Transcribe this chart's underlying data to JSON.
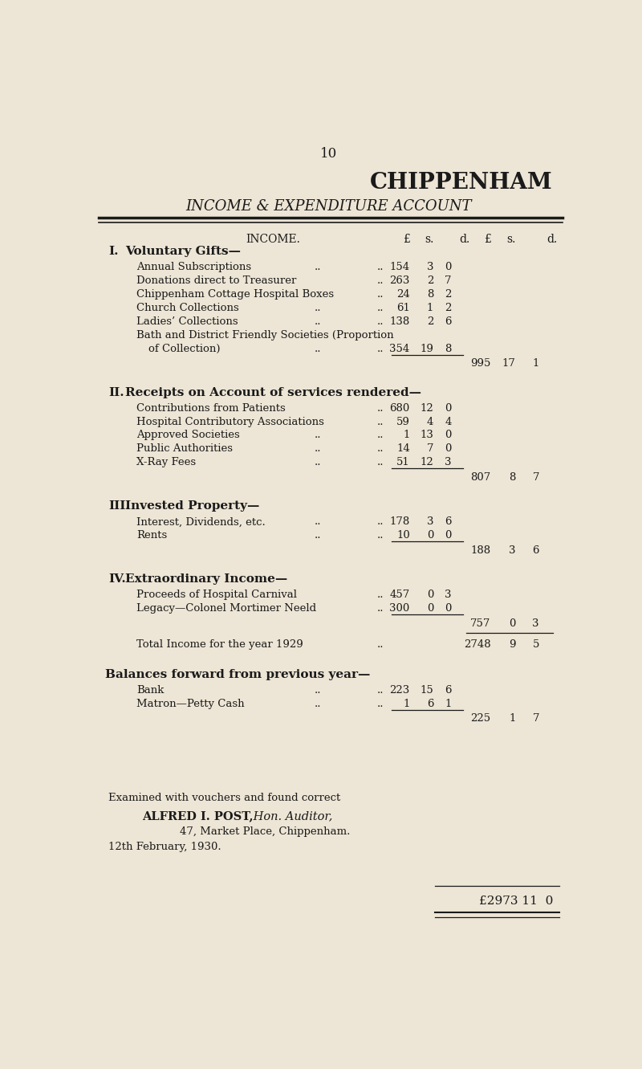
{
  "bg_color": "#ede5d5",
  "text_color": "#1a1a1a",
  "page_number": "10",
  "title1": "CHIPPENHAM",
  "title2": "INCOME & EXPENDITURE ACCOUNT",
  "sections": [
    {
      "roman": "I.",
      "heading": "Voluntary Gifts—",
      "items": [
        {
          "label": "Annual Subscriptions",
          "dots1": true,
          "dots2": true,
          "c1": "154",
          "c2": "3",
          "c3": "0"
        },
        {
          "label": "Donations direct to Treasurer",
          "dots1": false,
          "dots2": true,
          "c1": "263",
          "c2": "2",
          "c3": "7"
        },
        {
          "label": "Chippenham Cottage Hospital Boxes",
          "dots1": false,
          "dots2": true,
          "c1": "24",
          "c2": "8",
          "c3": "2"
        },
        {
          "label": "Church Collections",
          "dots1": true,
          "dots2": true,
          "c1": "61",
          "c2": "1",
          "c3": "2"
        },
        {
          "label": "Ladies’ Collections",
          "dots1": true,
          "dots2": true,
          "c1": "138",
          "c2": "2",
          "c3": "6"
        },
        {
          "label": "Bath and District Friendly Societies (Proportion",
          "dots1": false,
          "dots2": false,
          "c1": "",
          "c2": "",
          "c3": ""
        },
        {
          "label": "of Collection)",
          "dots1": true,
          "dots2": true,
          "c1": "354",
          "c2": "19",
          "c3": "8"
        }
      ],
      "subtotal": {
        "c1": "995",
        "c2": "17",
        "c3": "1"
      }
    },
    {
      "roman": "II.",
      "heading": "Receipts on Account of services rendered—",
      "items": [
        {
          "label": "Contributions from Patients",
          "dots1": false,
          "dots2": true,
          "c1": "680",
          "c2": "12",
          "c3": "0"
        },
        {
          "label": "Hospital Contributory Associations",
          "dots1": false,
          "dots2": true,
          "c1": "59",
          "c2": "4",
          "c3": "4"
        },
        {
          "label": "Approved Societies",
          "dots1": true,
          "dots2": true,
          "c1": "1",
          "c2": "13",
          "c3": "0"
        },
        {
          "label": "Public Authorities",
          "dots1": true,
          "dots2": true,
          "c1": "14",
          "c2": "7",
          "c3": "0"
        },
        {
          "label": "X-Ray Fees",
          "dots1": true,
          "dots2": true,
          "c1": "51",
          "c2": "12",
          "c3": "3"
        }
      ],
      "subtotal": {
        "c1": "807",
        "c2": "8",
        "c3": "7"
      }
    },
    {
      "roman": "III.",
      "heading": "Invested Property—",
      "items": [
        {
          "label": "Interest, Dividends, etc.",
          "dots1": true,
          "dots2": true,
          "c1": "178",
          "c2": "3",
          "c3": "6"
        },
        {
          "label": "Rents",
          "dots1": true,
          "dots2": true,
          "c1": "10",
          "c2": "0",
          "c3": "0"
        }
      ],
      "subtotal": {
        "c1": "188",
        "c2": "3",
        "c3": "6"
      }
    },
    {
      "roman": "IV.",
      "heading": "Extraordinary Income—",
      "items": [
        {
          "label": "Proceeds of Hospital Carnival",
          "dots1": false,
          "dots2": true,
          "c1": "457",
          "c2": "0",
          "c3": "3"
        },
        {
          "label": "Legacy—Colonel Mortimer Neeld",
          "dots1": false,
          "dots2": true,
          "c1": "300",
          "c2": "0",
          "c3": "0"
        }
      ],
      "subtotal": {
        "c1": "757",
        "c2": "0",
        "c3": "3"
      }
    }
  ],
  "total_label": "Total Income for the year 1929",
  "total": {
    "c1": "2748",
    "c2": "9",
    "c3": "5"
  },
  "balances_heading": "Balances forward from previous year—",
  "balances": [
    {
      "label": "Bank",
      "dots1": true,
      "dots2": true,
      "c1": "223",
      "c2": "15",
      "c3": "6"
    },
    {
      "label": "Matron—Petty Cash",
      "dots1": true,
      "dots2": true,
      "c1": "1",
      "c2": "6",
      "c3": "1"
    }
  ],
  "balances_subtotal": {
    "c1": "225",
    "c2": "1",
    "c3": "7"
  },
  "auditor_line1": "Examined with vouchers and found correct",
  "auditor_line2_bold": "ALFRED I. POST,",
  "auditor_line2_italic": " Hon. Auditor,",
  "auditor_line3": "47, Market Place, Chippenham.",
  "auditor_line4": "12th February, 1930.",
  "grand_total_str": "£2973 11  0"
}
